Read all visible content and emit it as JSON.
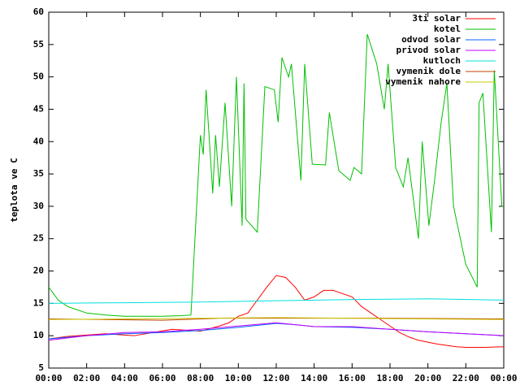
{
  "chart_data": {
    "type": "line",
    "y_label": "teplota ve C",
    "xlim": [
      0,
      24
    ],
    "xticks": [
      {
        "value": 0,
        "label": "00:00"
      },
      {
        "value": 2,
        "label": "02:00"
      },
      {
        "value": 4,
        "label": "04:00"
      },
      {
        "value": 6,
        "label": "06:00"
      },
      {
        "value": 8,
        "label": "08:00"
      },
      {
        "value": 10,
        "label": "10:00"
      },
      {
        "value": 12,
        "label": "12:00"
      },
      {
        "value": 14,
        "label": "14:00"
      },
      {
        "value": 16,
        "label": "16:00"
      },
      {
        "value": 18,
        "label": "18:00"
      },
      {
        "value": 20,
        "label": "20:00"
      },
      {
        "value": 22,
        "label": "22:00"
      },
      {
        "value": 24,
        "label": "00:00"
      }
    ],
    "ylim": [
      5,
      60
    ],
    "yticks": [
      5,
      10,
      15,
      20,
      25,
      30,
      35,
      40,
      45,
      50,
      55,
      60
    ],
    "legend": "top-right",
    "series": [
      {
        "name": "3ti solar",
        "color": "#ff0000",
        "x": [
          0,
          1,
          2,
          3,
          4,
          4.5,
          5.5,
          6.5,
          8,
          9,
          9.5,
          10,
          10.5,
          11,
          11.5,
          12,
          12.5,
          13,
          13.5,
          14,
          14.5,
          15,
          15.5,
          16,
          16.5,
          17,
          17.5,
          18,
          18.5,
          19,
          19.5,
          20,
          20.5,
          21,
          21.5,
          22,
          23,
          24
        ],
        "values": [
          9.5,
          9.9,
          10.1,
          10.3,
          10.1,
          10,
          10.5,
          11,
          10.7,
          11.5,
          12,
          13,
          13.5,
          15.5,
          17.5,
          19.3,
          19,
          17.5,
          15.5,
          16,
          17,
          17,
          16.5,
          16,
          14.5,
          13.5,
          12.5,
          11.5,
          10.5,
          9.8,
          9.3,
          9,
          8.7,
          8.5,
          8.3,
          8.2,
          8.2,
          8.3
        ]
      },
      {
        "name": "kotel",
        "color": "#00c000",
        "x": [
          0,
          0.5,
          1,
          2,
          3,
          4,
          5,
          6,
          7,
          7.5,
          8,
          8.15,
          8.3,
          8.65,
          8.8,
          9.0,
          9.3,
          9.65,
          9.9,
          10.2,
          10.3,
          10.4,
          11,
          11.4,
          11.9,
          12.1,
          12.3,
          12.65,
          12.8,
          13.3,
          13.5,
          13.9,
          14.6,
          14.8,
          15.3,
          15.9,
          16.1,
          16.5,
          16.8,
          17.3,
          17.7,
          17.9,
          18.3,
          18.7,
          18.95,
          19.5,
          19.7,
          20.05,
          20.35,
          20.7,
          21.0,
          21.35,
          22.0,
          22.6,
          22.7,
          22.9,
          23.35,
          23.5,
          23.9,
          24
        ],
        "values": [
          17.5,
          15.5,
          14.5,
          13.5,
          13.2,
          13,
          13,
          13,
          13.1,
          13.2,
          41,
          38,
          48,
          32,
          41,
          33,
          46,
          30,
          50,
          27,
          49,
          28,
          26,
          48.5,
          48,
          43,
          53,
          50,
          52,
          34,
          52,
          36.5,
          36.4,
          44.5,
          35.5,
          34,
          36,
          35,
          56.6,
          52,
          45,
          52,
          36,
          33,
          37.5,
          25,
          40,
          27,
          34,
          43,
          49,
          30,
          21,
          17.5,
          46,
          47.5,
          26,
          51,
          30,
          30
        ]
      },
      {
        "name": "odvod solar",
        "color": "#0060ff",
        "x": [
          0,
          2,
          4,
          6,
          8,
          10,
          12,
          13,
          14,
          16,
          18,
          20,
          22,
          24
        ],
        "values": [
          9.5,
          10,
          10.3,
          10.5,
          10.8,
          11.3,
          11.9,
          11.7,
          11.4,
          11.3,
          11,
          10.6,
          10.3,
          10
        ]
      },
      {
        "name": "privod solar",
        "color": "#c000ff",
        "x": [
          0,
          2,
          4,
          6,
          8,
          10,
          12,
          13,
          14,
          16,
          18,
          20,
          22,
          24
        ],
        "values": [
          9.3,
          10,
          10.5,
          10.6,
          11,
          11.5,
          12,
          11.7,
          11.4,
          11.4,
          11,
          10.6,
          10.3,
          10
        ]
      },
      {
        "name": "kutloch",
        "color": "#00e0e0",
        "x": [
          0,
          4,
          8,
          12,
          16,
          20,
          24
        ],
        "values": [
          15,
          15.1,
          15.2,
          15.4,
          15.6,
          15.7,
          15.5
        ]
      },
      {
        "name": "vymenik dole",
        "color": "#c04000",
        "x": [
          0,
          6,
          9,
          18,
          24
        ],
        "values": [
          12.6,
          12.4,
          12.7,
          12.7,
          12.6
        ]
      },
      {
        "name": "vymenik nahore",
        "color": "#c8c800",
        "x": [
          0,
          12,
          24
        ],
        "values": [
          12.5,
          12.8,
          12.5
        ]
      }
    ]
  }
}
